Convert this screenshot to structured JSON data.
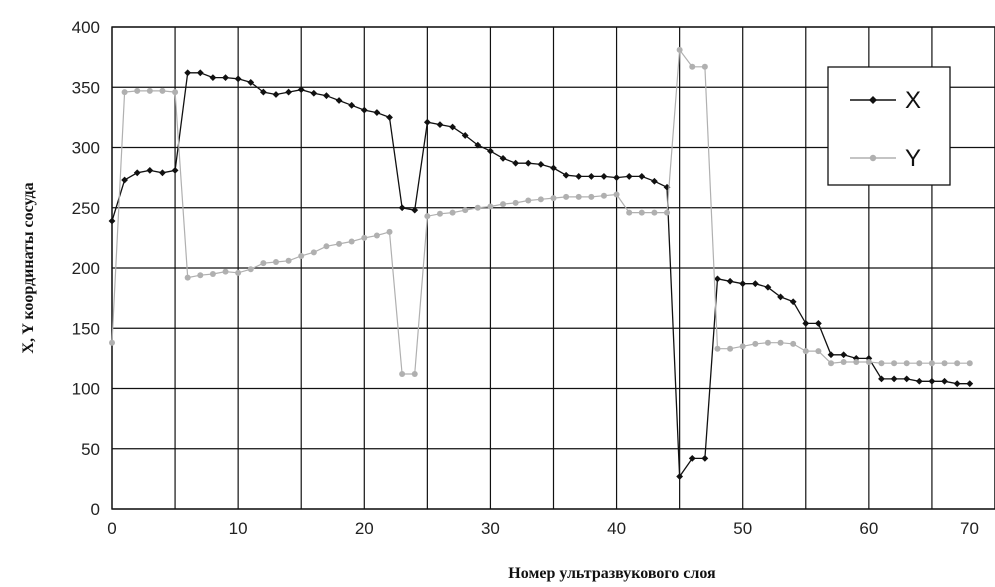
{
  "chart_data": {
    "type": "line",
    "title": "",
    "xlabel": "Номер ультразвукового слоя",
    "ylabel": "X, Y координаты сосуда",
    "xlim": [
      0,
      70
    ],
    "ylim": [
      0,
      400
    ],
    "xticks": [
      "0",
      "10",
      "20",
      "30",
      "40",
      "50",
      "60",
      "70"
    ],
    "yticks": [
      "0",
      "50",
      "100",
      "150",
      "200",
      "250",
      "300",
      "350",
      "400"
    ],
    "grid": true,
    "legend_position": "top-right",
    "x": [
      0,
      1,
      2,
      3,
      4,
      5,
      6,
      7,
      8,
      9,
      10,
      11,
      12,
      13,
      14,
      15,
      16,
      17,
      18,
      19,
      20,
      21,
      22,
      23,
      24,
      25,
      26,
      27,
      28,
      29,
      30,
      31,
      32,
      33,
      34,
      35,
      36,
      37,
      38,
      39,
      40,
      41,
      42,
      43,
      44,
      45,
      46,
      47,
      48,
      49,
      50,
      51,
      52,
      53,
      54,
      55,
      56,
      57,
      58,
      59,
      60,
      61,
      62,
      63,
      64,
      65,
      66,
      67,
      68
    ],
    "series": [
      {
        "name": "X",
        "color": "#111111",
        "values": [
          239,
          273,
          279,
          281,
          279,
          281,
          362,
          362,
          358,
          358,
          357,
          354,
          346,
          344,
          346,
          348,
          345,
          343,
          339,
          335,
          331,
          329,
          325,
          250,
          248,
          321,
          319,
          317,
          310,
          302,
          297,
          291,
          287,
          287,
          286,
          283,
          277,
          276,
          276,
          276,
          275,
          276,
          276,
          272,
          267,
          27,
          42,
          42,
          191,
          189,
          187,
          187,
          184,
          176,
          172,
          154,
          154,
          128,
          128,
          125,
          125,
          108,
          108,
          108,
          106,
          106,
          106,
          104,
          104
        ]
      },
      {
        "name": "Y",
        "color": "#b0b0b0",
        "values": [
          138,
          346,
          347,
          347,
          347,
          346,
          192,
          194,
          195,
          197,
          196,
          199,
          204,
          205,
          206,
          210,
          213,
          218,
          220,
          222,
          225,
          227,
          230,
          112,
          112,
          243,
          245,
          246,
          248,
          250,
          251,
          253,
          254,
          256,
          257,
          258,
          259,
          259,
          259,
          260,
          261,
          246,
          246,
          246,
          246,
          381,
          367,
          367,
          133,
          133,
          135,
          137,
          138,
          138,
          137,
          131,
          131,
          121,
          122,
          122,
          122,
          121,
          121,
          121,
          121,
          121,
          121,
          121,
          121
        ]
      }
    ]
  }
}
